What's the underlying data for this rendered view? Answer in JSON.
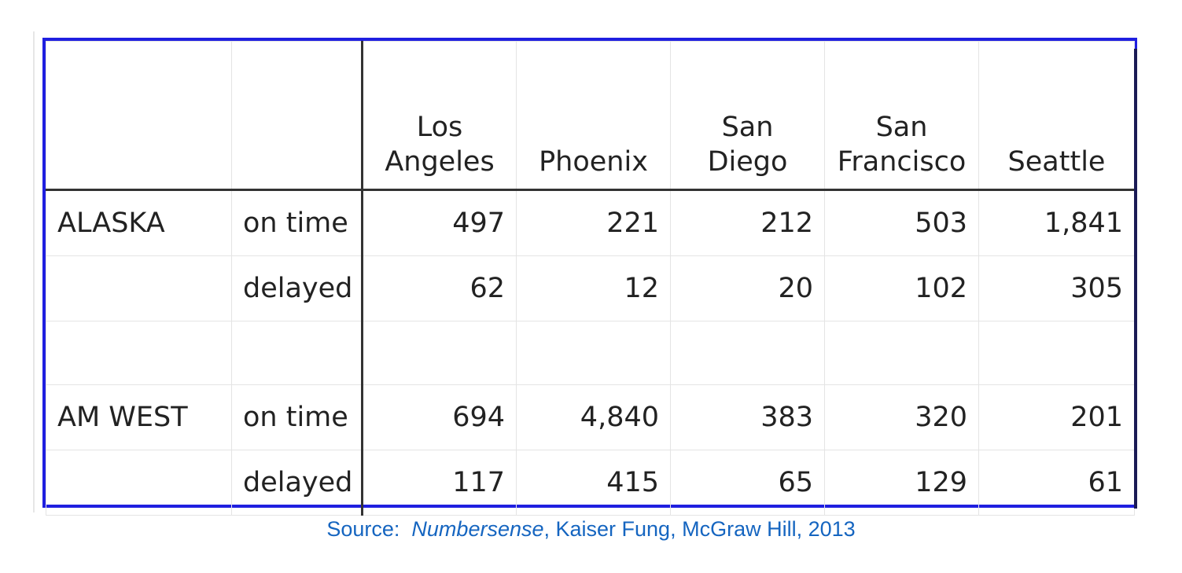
{
  "table": {
    "columns": [
      {
        "line1": "",
        "line2": ""
      },
      {
        "line1": "",
        "line2": ""
      },
      {
        "line1": "Los",
        "line2": "Angeles"
      },
      {
        "line1": "",
        "line2": "Phoenix"
      },
      {
        "line1": "San",
        "line2": "Diego"
      },
      {
        "line1": "San",
        "line2": "Francisco"
      },
      {
        "line1": "",
        "line2": "Seattle"
      }
    ],
    "rows": [
      {
        "airline": "ALASKA",
        "status": "on time",
        "values": [
          "497",
          "221",
          "212",
          "503",
          "1,841"
        ]
      },
      {
        "airline": "",
        "status": "delayed",
        "values": [
          "62",
          "12",
          "20",
          "102",
          "305"
        ]
      },
      {
        "airline": "AM WEST",
        "status": "on time",
        "values": [
          "694",
          "4,840",
          "383",
          "320",
          "201"
        ]
      },
      {
        "airline": "",
        "status": "delayed",
        "values": [
          "117",
          "415",
          "65",
          "129",
          "61"
        ]
      }
    ]
  },
  "source": {
    "prefix": "Source:  ",
    "title": "Numbersense",
    "suffix": ", Kaiser Fung, McGraw Hill, 2013"
  },
  "colors": {
    "frame": "#1f1fe0",
    "source_text": "#1565c0"
  }
}
